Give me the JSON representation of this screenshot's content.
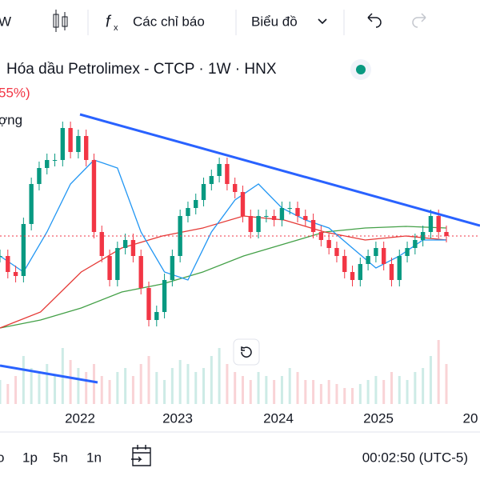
{
  "toolbar": {
    "interval": "W",
    "indicators": "Các chỉ báo",
    "chart_type": "Biểu đồ"
  },
  "legend": {
    "title": "Hóa dầu Petrolimex - CTCP · 1W · HNX",
    "change": "55%)",
    "volume_label": "ợng"
  },
  "chart_data": {
    "type": "candlestick",
    "ylim": [
      0,
      300
    ],
    "values": [
      120,
      100,
      95,
      160,
      210,
      230,
      240,
      240,
      280,
      250,
      270,
      240,
      150,
      120,
      90,
      130,
      140,
      120,
      80,
      40,
      50,
      90,
      120,
      170,
      180,
      190,
      210,
      220,
      235,
      210,
      200,
      170,
      150,
      170,
      170,
      165,
      180,
      180,
      170,
      165,
      150,
      140,
      130,
      120,
      100,
      90,
      110,
      120,
      130,
      110,
      90,
      120,
      130,
      140,
      150,
      170,
      150,
      145
    ],
    "volume": [
      30,
      25,
      35,
      60,
      45,
      40,
      50,
      35,
      70,
      55,
      45,
      40,
      50,
      35,
      30,
      40,
      45,
      35,
      50,
      60,
      40,
      30,
      45,
      55,
      50,
      40,
      45,
      60,
      70,
      50,
      40,
      35,
      30,
      40,
      35,
      30,
      35,
      45,
      40,
      30,
      30,
      25,
      30,
      25,
      20,
      20,
      25,
      30,
      35,
      30,
      40,
      35,
      30,
      40,
      45,
      60,
      80,
      50
    ],
    "ma_blue": [
      120,
      100,
      150,
      210,
      240,
      230,
      150,
      100,
      90,
      150,
      190,
      210,
      180,
      165,
      155,
      130,
      105,
      120,
      140,
      140
    ],
    "ma_red": [
      30,
      50,
      100,
      130,
      145,
      155,
      170,
      165,
      150,
      140,
      145,
      140
    ],
    "ma_green": [
      30,
      40,
      55,
      75,
      85,
      100,
      120,
      135,
      150,
      155,
      157,
      155
    ],
    "x_labels": [
      "2022",
      "2023",
      "2024",
      "2025",
      "20"
    ]
  },
  "footer": {
    "ranges": [
      "o",
      "1p",
      "5n",
      "1n"
    ],
    "time": "00:02:50 (UTC-5)"
  }
}
